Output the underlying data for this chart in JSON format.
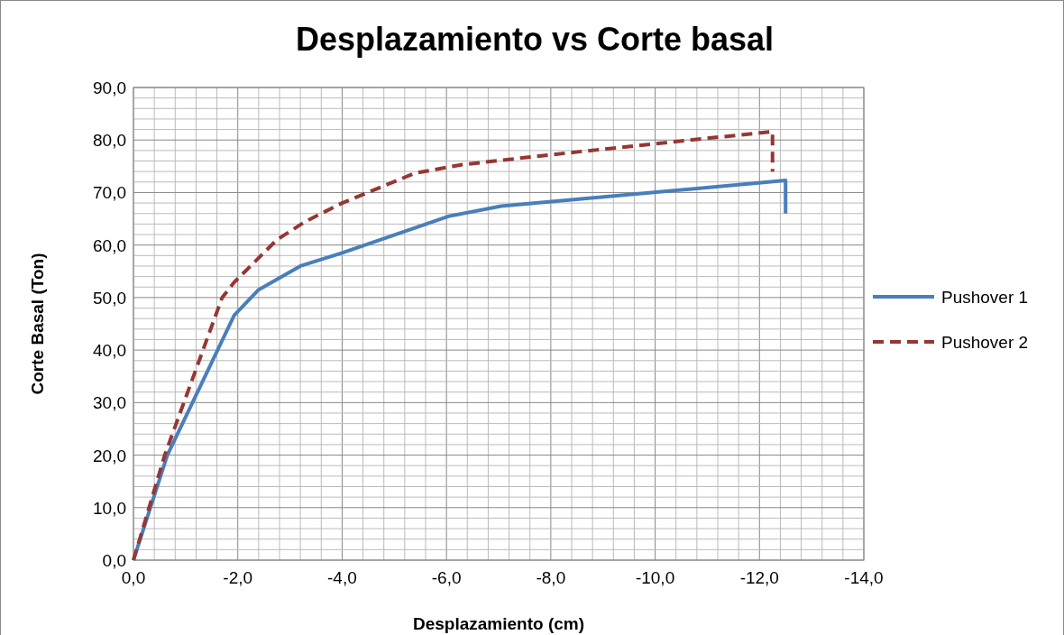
{
  "chart_data": {
    "type": "line",
    "title": "Desplazamiento vs Corte basal",
    "xlabel": "Desplazamiento (cm)",
    "ylabel": "Corte Basal (Ton)",
    "xlim": [
      0,
      -14
    ],
    "ylim": [
      0,
      90
    ],
    "xticks": [
      {
        "value": 0,
        "label": "0,0"
      },
      {
        "value": -0.4,
        "label": null
      },
      {
        "value": -0.8,
        "label": null
      },
      {
        "value": -1.2,
        "label": null
      },
      {
        "value": -1.6,
        "label": null
      },
      {
        "value": -2,
        "label": "-2,0"
      },
      {
        "value": -2.4,
        "label": null
      },
      {
        "value": -2.8,
        "label": null
      },
      {
        "value": -3.2,
        "label": null
      },
      {
        "value": -3.6,
        "label": null
      },
      {
        "value": -4,
        "label": "-4,0"
      },
      {
        "value": -4.4,
        "label": null
      },
      {
        "value": -4.8,
        "label": null
      },
      {
        "value": -5.2,
        "label": null
      },
      {
        "value": -5.6,
        "label": null
      },
      {
        "value": -6,
        "label": "-6,0"
      },
      {
        "value": -6.4,
        "label": null
      },
      {
        "value": -6.8,
        "label": null
      },
      {
        "value": -7.2,
        "label": null
      },
      {
        "value": -7.6,
        "label": null
      },
      {
        "value": -8,
        "label": "-8,0"
      },
      {
        "value": -8.4,
        "label": null
      },
      {
        "value": -8.8,
        "label": null
      },
      {
        "value": -9.2,
        "label": null
      },
      {
        "value": -9.6,
        "label": null
      },
      {
        "value": -10,
        "label": "-10,0"
      },
      {
        "value": -10.4,
        "label": null
      },
      {
        "value": -10.8,
        "label": null
      },
      {
        "value": -11.2,
        "label": null
      },
      {
        "value": -11.6,
        "label": null
      },
      {
        "value": -12,
        "label": "-12,0"
      },
      {
        "value": -12.4,
        "label": null
      },
      {
        "value": -12.8,
        "label": null
      },
      {
        "value": -13.2,
        "label": null
      },
      {
        "value": -13.6,
        "label": null
      },
      {
        "value": -14,
        "label": "-14,0"
      }
    ],
    "yticks": [
      {
        "value": 0,
        "label": "0,0"
      },
      {
        "value": 2,
        "label": null
      },
      {
        "value": 4,
        "label": null
      },
      {
        "value": 6,
        "label": null
      },
      {
        "value": 8,
        "label": null
      },
      {
        "value": 10,
        "label": "10,0"
      },
      {
        "value": 12,
        "label": null
      },
      {
        "value": 14,
        "label": null
      },
      {
        "value": 16,
        "label": null
      },
      {
        "value": 18,
        "label": null
      },
      {
        "value": 20,
        "label": "20,0"
      },
      {
        "value": 22,
        "label": null
      },
      {
        "value": 24,
        "label": null
      },
      {
        "value": 26,
        "label": null
      },
      {
        "value": 28,
        "label": null
      },
      {
        "value": 30,
        "label": "30,0"
      },
      {
        "value": 32,
        "label": null
      },
      {
        "value": 34,
        "label": null
      },
      {
        "value": 36,
        "label": null
      },
      {
        "value": 38,
        "label": null
      },
      {
        "value": 40,
        "label": "40,0"
      },
      {
        "value": 42,
        "label": null
      },
      {
        "value": 44,
        "label": null
      },
      {
        "value": 46,
        "label": null
      },
      {
        "value": 48,
        "label": null
      },
      {
        "value": 50,
        "label": "50,0"
      },
      {
        "value": 52,
        "label": null
      },
      {
        "value": 54,
        "label": null
      },
      {
        "value": 56,
        "label": null
      },
      {
        "value": 58,
        "label": null
      },
      {
        "value": 60,
        "label": "60,0"
      },
      {
        "value": 62,
        "label": null
      },
      {
        "value": 64,
        "label": null
      },
      {
        "value": 66,
        "label": null
      },
      {
        "value": 68,
        "label": null
      },
      {
        "value": 70,
        "label": "70,0"
      },
      {
        "value": 72,
        "label": null
      },
      {
        "value": 74,
        "label": null
      },
      {
        "value": 76,
        "label": null
      },
      {
        "value": 78,
        "label": null
      },
      {
        "value": 80,
        "label": "80,0"
      },
      {
        "value": 82,
        "label": null
      },
      {
        "value": 84,
        "label": null
      },
      {
        "value": 86,
        "label": null
      },
      {
        "value": 88,
        "label": null
      },
      {
        "value": 90,
        "label": "90,0"
      }
    ],
    "grid": true,
    "legend": "right",
    "marker": "none",
    "series": [
      {
        "name": "Pushover 1",
        "color": "#4a7ebb",
        "line_style": "solid",
        "x": [
          0,
          -0.65,
          -1.93,
          -2.4,
          -3.2,
          -4,
          -6.05,
          -7.05,
          -12.5,
          -12.5
        ],
        "values": [
          0,
          20,
          46.6,
          51.5,
          56,
          58.5,
          65.5,
          67.4,
          72.3,
          66
        ]
      },
      {
        "name": "Pushover 2",
        "color": "#953735",
        "line_style": "dashed",
        "x": [
          0,
          -0.6,
          -1.7,
          -1.93,
          -2.75,
          -3.3,
          -4,
          -5.4,
          -6.3,
          -8,
          -10,
          -12.25,
          -12.25
        ],
        "values": [
          0,
          20,
          50,
          52.9,
          61,
          64.5,
          68,
          73.7,
          75.3,
          77.2,
          79.3,
          81.6,
          74
        ]
      }
    ]
  }
}
